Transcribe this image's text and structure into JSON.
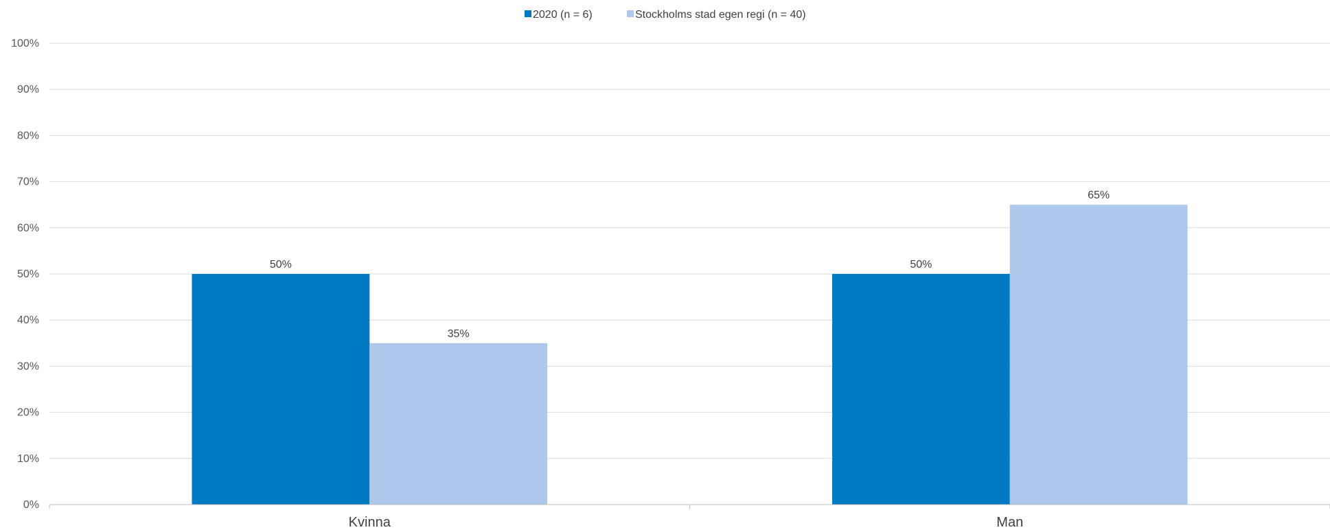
{
  "chart_data": {
    "type": "bar",
    "title": "",
    "xlabel": "",
    "ylabel": "",
    "categories": [
      "Kvinna",
      "Man"
    ],
    "series": [
      {
        "name": "2020 (n = 6)",
        "values": [
          50,
          50
        ],
        "labels": [
          "50%",
          "50%"
        ],
        "color": "#007ac3"
      },
      {
        "name": "Stockholms stad egen regi (n = 40)",
        "values": [
          35,
          65
        ],
        "labels": [
          "35%",
          "65%"
        ],
        "color": "#adc8eb"
      }
    ],
    "ylim": [
      0,
      100
    ],
    "yticks": [
      0,
      10,
      20,
      30,
      40,
      50,
      60,
      70,
      80,
      90,
      100
    ],
    "ytick_labels": [
      "0%",
      "10%",
      "20%",
      "30%",
      "40%",
      "50%",
      "60%",
      "70%",
      "80%",
      "90%",
      "100%"
    ],
    "grid": true,
    "legend_position": "top-center",
    "colors": {
      "grid": "#d9d9d9",
      "axis": "#bfbfbf"
    }
  }
}
